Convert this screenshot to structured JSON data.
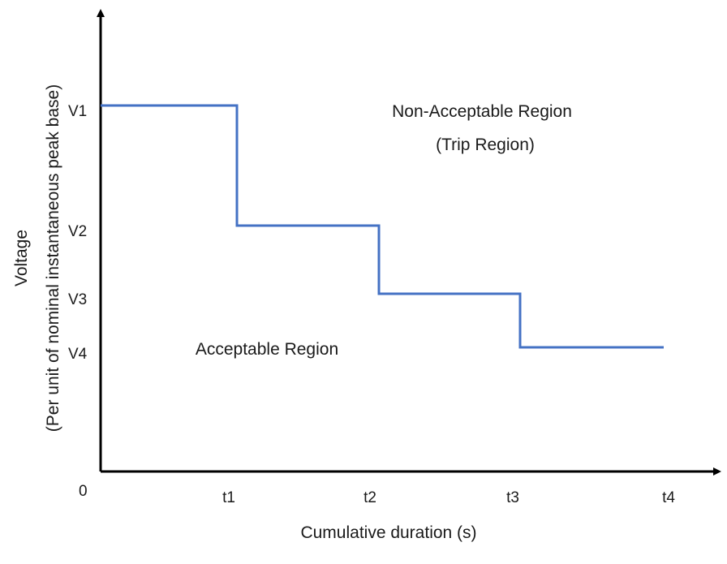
{
  "chart_data": {
    "type": "step-line",
    "xlabel": "Cumulative duration (s)",
    "ylabel_line1": "Voltage",
    "ylabel_line2": "(Per unit of nominal instantaneous peak base)",
    "origin_label": "0",
    "x_ticks": [
      "t1",
      "t2",
      "t3",
      "t4"
    ],
    "y_ticks": [
      "V1",
      "V2",
      "V3",
      "V4"
    ],
    "steps": [
      {
        "from": "0",
        "to": "t1",
        "level": "V1"
      },
      {
        "from": "t1",
        "to": "t2",
        "level": "V2"
      },
      {
        "from": "t2",
        "to": "t3",
        "level": "V3"
      },
      {
        "from": "t3",
        "to": "t4",
        "level": "V4"
      }
    ],
    "regions": {
      "upper_line1": "Non-Acceptable Region",
      "upper_line2": "(Trip Region)",
      "lower": "Acceptable Region"
    },
    "line_color": "#4472c4",
    "axis_color": "#000000"
  }
}
